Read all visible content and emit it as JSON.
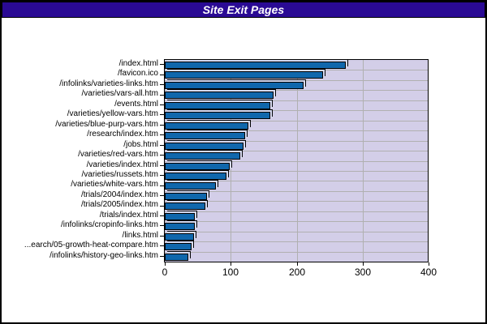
{
  "header": {
    "title": "Site Exit Pages"
  },
  "chart_data": {
    "type": "bar",
    "orientation": "horizontal",
    "title": "Site Exit Pages",
    "categories": [
      "/index.html",
      "/favicon.ico",
      "/infolinks/varieties-links.htm",
      "/varieties/vars-all.htm",
      "/events.html",
      "/varieties/yellow-vars.htm",
      "/varieties/blue-purp-vars.htm",
      "/research/index.htm",
      "/jobs.html",
      "/varieties/red-vars.htm",
      "/varieties/index.html",
      "/varieties/russets.htm",
      "/varieties/white-vars.htm",
      "/trials/2004/index.htm",
      "/trials/2005/index.htm",
      "/trials/index.html",
      "/infolinks/cropinfo-links.htm",
      "/links.html",
      "...earch/05-growth-heat-compare.htm",
      "/infolinks/history-geo-links.htm"
    ],
    "values": [
      275,
      240,
      210,
      165,
      160,
      160,
      127,
      122,
      119,
      114,
      98,
      93,
      78,
      64,
      62,
      46,
      45,
      44,
      41,
      36
    ],
    "xlabel": "",
    "ylabel": "",
    "xlim": [
      0,
      400
    ],
    "x_ticks": [
      0,
      100,
      200,
      300,
      400
    ],
    "grid": true,
    "legend": false
  },
  "colors": {
    "title_bg": "#2A0A94",
    "title_text": "#FFFFFF",
    "bar_fill": "#1067AC",
    "bar_border": "#000000",
    "bar_highlight": "#D6DAF2",
    "plot_bg": "#D3CEE8",
    "gridline": "#B0B0B0",
    "frame_border": "#000000",
    "page_bg": "#FFFFFF"
  }
}
